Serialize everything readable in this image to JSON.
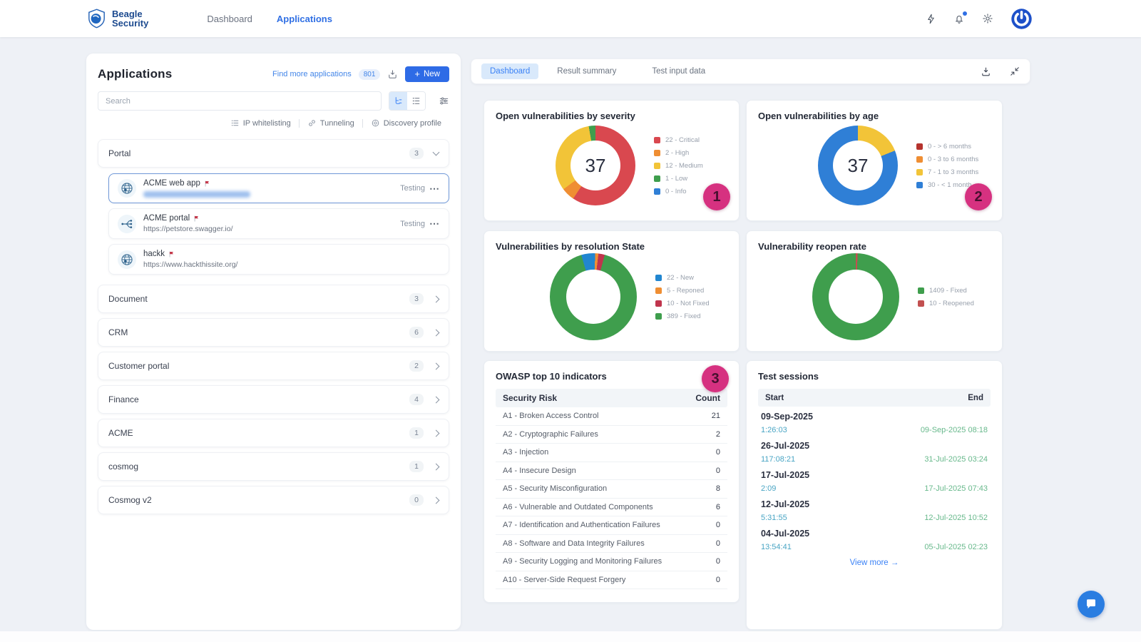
{
  "colors": {
    "accent": "#2e6be6",
    "annotation_pink": "#d63180",
    "duration_teal": "#49a5c4",
    "end_green": "#68b98c"
  },
  "nav": {
    "brand_line1": "Beagle",
    "brand_line2": "Security",
    "items": [
      {
        "label": "Dashboard",
        "active": false
      },
      {
        "label": "Applications",
        "active": true
      }
    ]
  },
  "left_panel": {
    "title": "Applications",
    "find_more_label": "Find more applications",
    "find_more_count": "801",
    "new_button_label": "New",
    "search_placeholder": "Search",
    "quick_links": [
      "IP whitelisting",
      "Tunneling",
      "Discovery profile"
    ],
    "portal_group": {
      "name": "Portal",
      "count": "3"
    },
    "apps": [
      {
        "name": "ACME web app",
        "url": "",
        "url_blurred": true,
        "status": "Testing",
        "icon": "globe",
        "selected": true,
        "has_menu": true
      },
      {
        "name": "ACME portal",
        "url": "https://petstore.swagger.io/",
        "url_blurred": false,
        "status": "Testing",
        "icon": "api",
        "selected": false,
        "has_menu": true
      },
      {
        "name": "hackk",
        "url": "https://www.hackthissite.org/",
        "url_blurred": false,
        "status": "",
        "icon": "globe",
        "selected": false,
        "has_menu": false
      }
    ],
    "groups": [
      {
        "name": "Document",
        "count": "3"
      },
      {
        "name": "CRM",
        "count": "6"
      },
      {
        "name": "Customer portal",
        "count": "2"
      },
      {
        "name": "Finance",
        "count": "4"
      },
      {
        "name": "ACME",
        "count": "1"
      },
      {
        "name": "cosmog",
        "count": "1"
      },
      {
        "name": "Cosmog v2",
        "count": "0"
      }
    ]
  },
  "right_panel": {
    "tabs": [
      {
        "label": "Dashboard",
        "active": true
      },
      {
        "label": "Result summary",
        "active": false
      },
      {
        "label": "Test input data",
        "active": false
      }
    ],
    "annotations": [
      "1",
      "2",
      "3"
    ],
    "owasp": {
      "title": "OWASP top 10 indicators",
      "col_risk": "Security Risk",
      "col_count": "Count",
      "rows": [
        {
          "risk": "A1 - Broken Access Control",
          "count": "21"
        },
        {
          "risk": "A2 - Cryptographic Failures",
          "count": "2"
        },
        {
          "risk": "A3 - Injection",
          "count": "0"
        },
        {
          "risk": "A4 - Insecure Design",
          "count": "0"
        },
        {
          "risk": "A5 - Security Misconfiguration",
          "count": "8"
        },
        {
          "risk": "A6 - Vulnerable and Outdated Components",
          "count": "6"
        },
        {
          "risk": "A7 - Identification and Authentication Failures",
          "count": "0"
        },
        {
          "risk": "A8 - Software and Data Integrity Failures",
          "count": "0"
        },
        {
          "risk": "A9 - Security Logging and Monitoring Failures",
          "count": "0"
        },
        {
          "risk": "A10 - Server-Side Request Forgery",
          "count": "0"
        }
      ]
    },
    "sessions": {
      "title": "Test sessions",
      "col_start": "Start",
      "col_end": "End",
      "rows": [
        {
          "date": "09-Sep-2025",
          "duration": "1:26:03",
          "end": "09-Sep-2025 08:18"
        },
        {
          "date": "26-Jul-2025",
          "duration": "117:08:21",
          "end": "31-Jul-2025 03:24"
        },
        {
          "date": "17-Jul-2025",
          "duration": "2:09",
          "end": "17-Jul-2025 07:43"
        },
        {
          "date": "12-Jul-2025",
          "duration": "5:31:55",
          "end": "12-Jul-2025 10:52"
        },
        {
          "date": "04-Jul-2025",
          "duration": "13:54:41",
          "end": "05-Jul-2025 02:23"
        }
      ],
      "view_more": "View more →"
    }
  },
  "chart_data": [
    {
      "type": "donut",
      "title": "Open vulnerabilities by severity",
      "total_label": "37",
      "start_angle": 0,
      "legend_position": "right",
      "segments": [
        {
          "label": "22 - Critical",
          "value": 22,
          "color": "#d9484f"
        },
        {
          "label": "2 - High",
          "value": 2,
          "color": "#ef8e33"
        },
        {
          "label": "12 - Medium",
          "value": 12,
          "color": "#f2c438"
        },
        {
          "label": "1 - Low",
          "value": 1,
          "color": "#3f9e4d"
        },
        {
          "label": "0 - Info",
          "value": 0,
          "color": "#2f7fd6"
        }
      ]
    },
    {
      "type": "donut",
      "title": "Open vulnerabilities by age",
      "total_label": "37",
      "start_angle": 0,
      "legend_position": "right",
      "segments": [
        {
          "label": "0 - > 6 months",
          "value": 0,
          "color": "#b5332e"
        },
        {
          "label": "0 - 3 to 6 months",
          "value": 0,
          "color": "#ef8e33"
        },
        {
          "label": "7 - 1 to 3 months",
          "value": 7,
          "color": "#f2c438"
        },
        {
          "label": "30 - < 1 month",
          "value": 30,
          "color": "#2f7fd6"
        }
      ]
    },
    {
      "type": "donut",
      "title": "Vulnerabilities by resolution State",
      "total_label": "",
      "start_angle": -16,
      "legend_position": "right",
      "segments": [
        {
          "label": "22 - New",
          "value": 22,
          "color": "#2186d0"
        },
        {
          "label": "5 - Reponed",
          "value": 5,
          "color": "#ef8e33"
        },
        {
          "label": "10 - Not Fixed",
          "value": 10,
          "color": "#c0354d"
        },
        {
          "label": "389 - Fixed",
          "value": 389,
          "color": "#3f9e4d"
        }
      ]
    },
    {
      "type": "donut",
      "title": "Vulnerability reopen rate",
      "total_label": "",
      "start_angle": 2.6,
      "legend_position": "right",
      "segments": [
        {
          "label": "1409 - Fixed",
          "value": 1409,
          "color": "#3f9e4d"
        },
        {
          "label": "10 - Reopened",
          "value": 10,
          "color": "#c25050"
        }
      ]
    }
  ]
}
